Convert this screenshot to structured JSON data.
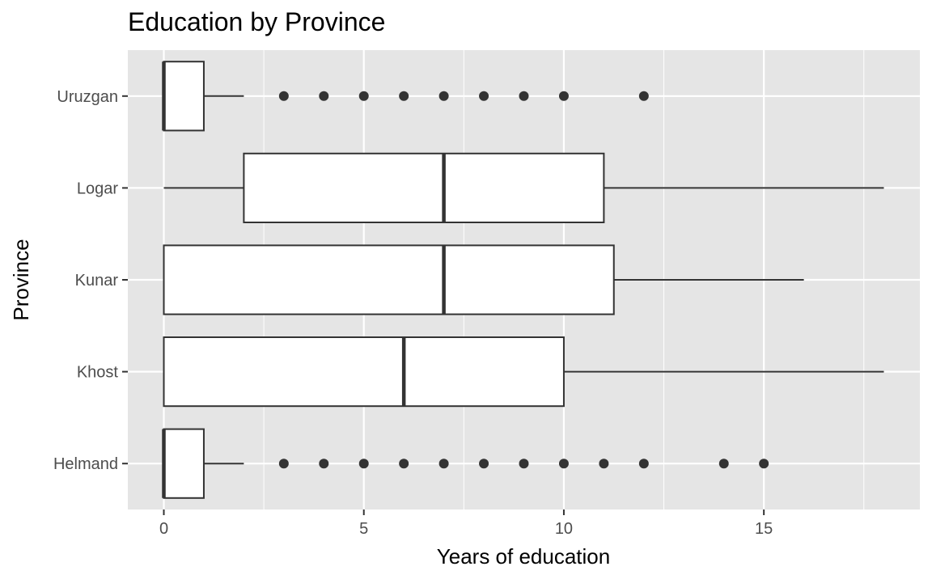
{
  "chart_data": {
    "type": "boxplot",
    "orientation": "horizontal",
    "title": "Education by Province",
    "xlabel": "Years of education",
    "ylabel": "Province",
    "xlim": [
      -0.9,
      18.9
    ],
    "x_ticks": [
      0,
      5,
      10,
      15
    ],
    "grid": true,
    "panel_background": "#e5e5e5",
    "grid_color": "#ffffff",
    "box_fill": "#ffffff",
    "box_stroke": "#333333",
    "categories": [
      "Helmand",
      "Khost",
      "Kunar",
      "Logar",
      "Uruzgan"
    ],
    "boxes": [
      {
        "category": "Helmand",
        "whisker_low": 0,
        "q1": 0,
        "median": 0,
        "q3": 1,
        "whisker_high": 2,
        "outliers": [
          3,
          4,
          5,
          6,
          7,
          8,
          9,
          10,
          11,
          12,
          14,
          15
        ]
      },
      {
        "category": "Khost",
        "whisker_low": 0,
        "q1": 0,
        "median": 6,
        "q3": 10,
        "whisker_high": 18,
        "outliers": []
      },
      {
        "category": "Kunar",
        "whisker_low": 0,
        "q1": 0,
        "median": 7,
        "q3": 11.25,
        "whisker_high": 16,
        "outliers": []
      },
      {
        "category": "Logar",
        "whisker_low": 0,
        "q1": 2,
        "median": 7,
        "q3": 11,
        "whisker_high": 18,
        "outliers": []
      },
      {
        "category": "Uruzgan",
        "whisker_low": 0,
        "q1": 0,
        "median": 0,
        "q3": 1,
        "whisker_high": 2,
        "outliers": [
          3,
          4,
          5,
          6,
          7,
          8,
          9,
          10,
          12
        ]
      }
    ]
  }
}
